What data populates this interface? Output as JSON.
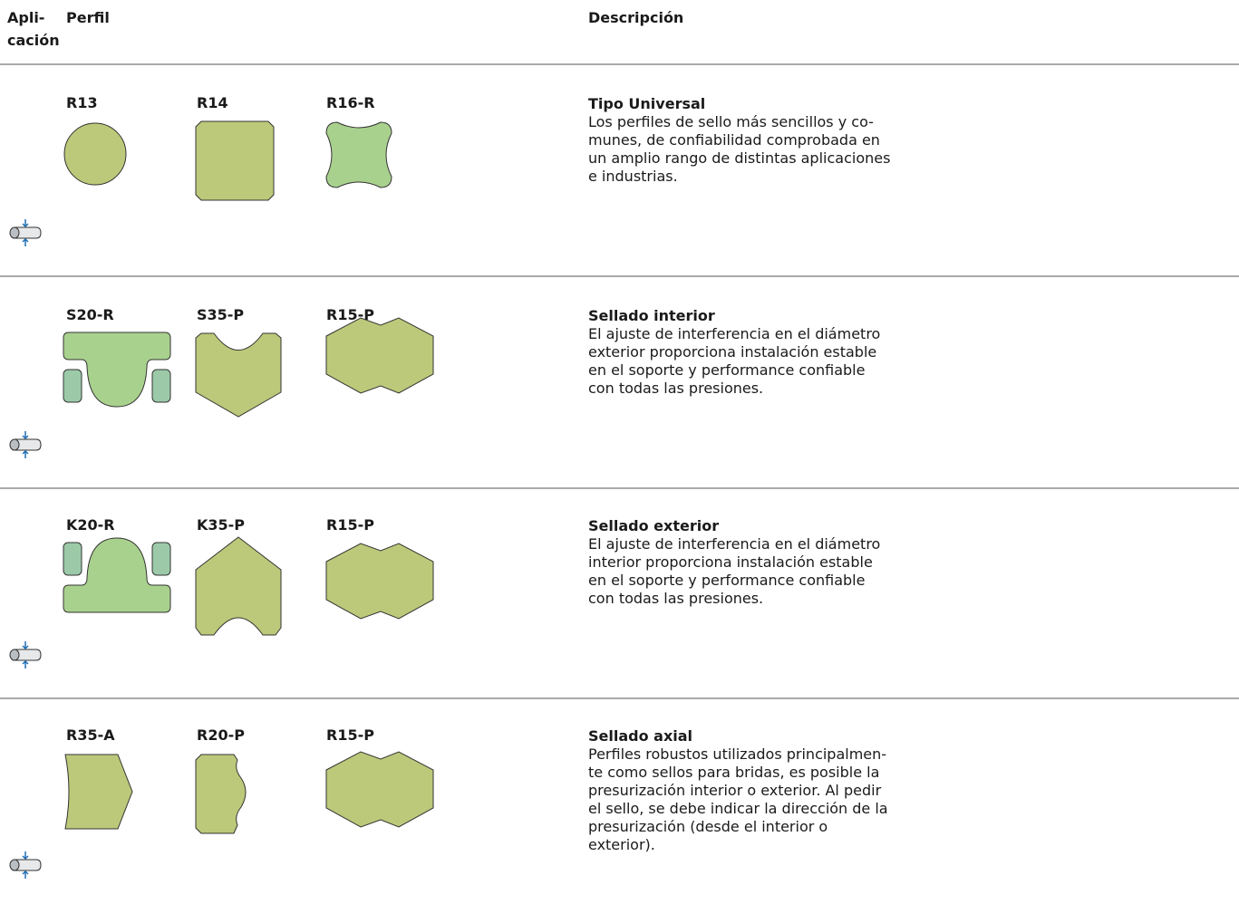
{
  "header": {
    "application": [
      "Apli-",
      "cación"
    ],
    "profile": "Perfil",
    "description": "Descripción"
  },
  "rows": [
    {
      "profiles": [
        "R13",
        "R14",
        "R16-R"
      ],
      "title": "Tipo Universal",
      "text": [
        "Los perfiles de sello más sencillos y co-",
        "munes, de confiabilidad comprobada en",
        "un amplio rango de distintas aplicaciones",
        "e industrias."
      ]
    },
    {
      "profiles": [
        "S20-R",
        "S35-P",
        "R15-P"
      ],
      "title": "Sellado interior",
      "text": [
        "El ajuste de interferencia en el diámetro",
        "exterior proporciona instalación estable",
        "en el soporte y performance confiable",
        "con todas las presiones."
      ]
    },
    {
      "profiles": [
        "K20-R",
        "K35-P",
        "R15-P"
      ],
      "title": "Sellado exterior",
      "text": [
        "El ajuste de interferencia en el diámetro",
        "interior proporciona instalación estable",
        "en el soporte y performance confiable",
        "con todas las presiones."
      ]
    },
    {
      "profiles": [
        "R35-A",
        "R20-P",
        "R15-P"
      ],
      "title": "Sellado axial",
      "text": [
        "Perfiles robustos utilizados principalmen-",
        "te como sellos para bridas, es posible la",
        "presurización interior o exterior. Al pedir",
        "el sello, se debe indicar la dirección de la",
        "presurización (desde el interior o",
        "exterior)."
      ]
    }
  ]
}
